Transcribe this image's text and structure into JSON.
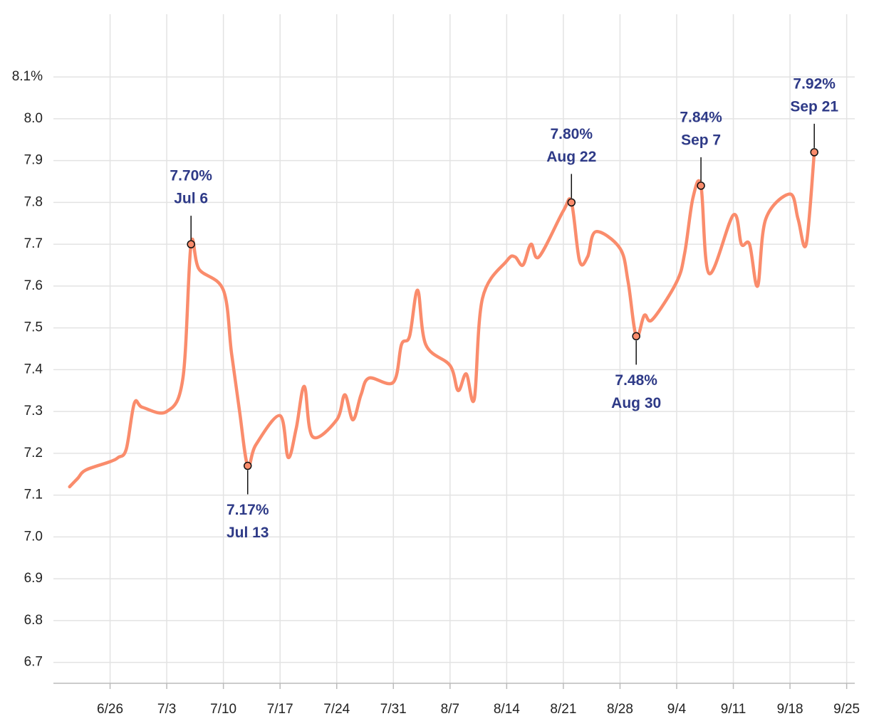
{
  "chart_data": {
    "type": "line",
    "x": [
      "6/21",
      "6/22",
      "6/23",
      "6/26",
      "6/27",
      "6/28",
      "6/29",
      "6/30",
      "7/3",
      "7/5",
      "7/6",
      "7/7",
      "7/10",
      "7/11",
      "7/12",
      "7/13",
      "7/14",
      "7/17",
      "7/18",
      "7/19",
      "7/20",
      "7/21",
      "7/24",
      "7/25",
      "7/26",
      "7/27",
      "7/28",
      "7/31",
      "8/1",
      "8/2",
      "8/3",
      "8/4",
      "8/7",
      "8/8",
      "8/9",
      "8/10",
      "8/11",
      "8/14",
      "8/15",
      "8/16",
      "8/17",
      "8/18",
      "8/21",
      "8/22",
      "8/23",
      "8/24",
      "8/25",
      "8/28",
      "8/29",
      "8/30",
      "8/31",
      "9/1",
      "9/4",
      "9/5",
      "9/6",
      "9/7",
      "9/8",
      "9/11",
      "9/12",
      "9/13",
      "9/14",
      "9/15",
      "9/18",
      "9/19",
      "9/20",
      "9/21"
    ],
    "series": [
      {
        "color": "#fa8c6c",
        "values": [
          7.12,
          7.14,
          7.16,
          7.18,
          7.19,
          7.21,
          7.32,
          7.31,
          7.3,
          7.38,
          7.7,
          7.64,
          7.59,
          7.44,
          7.3,
          7.17,
          7.22,
          7.29,
          7.19,
          7.26,
          7.36,
          7.24,
          7.28,
          7.34,
          7.28,
          7.34,
          7.38,
          7.37,
          7.46,
          7.48,
          7.59,
          7.46,
          7.41,
          7.35,
          7.39,
          7.33,
          7.57,
          7.66,
          7.67,
          7.65,
          7.7,
          7.67,
          7.78,
          7.8,
          7.66,
          7.67,
          7.73,
          7.69,
          7.61,
          7.48,
          7.53,
          7.52,
          7.61,
          7.68,
          7.81,
          7.84,
          7.63,
          7.77,
          7.7,
          7.7,
          7.6,
          7.76,
          7.82,
          7.76,
          7.7,
          7.92
        ]
      }
    ],
    "xlim": [
      "6/19",
      "9/26"
    ],
    "xticks": [
      "6/26",
      "7/3",
      "7/10",
      "7/17",
      "7/24",
      "7/31",
      "8/7",
      "8/14",
      "8/21",
      "8/28",
      "9/4",
      "9/11",
      "9/18",
      "9/25"
    ],
    "ylim": [
      6.65,
      8.25
    ],
    "yticks": [
      6.7,
      6.8,
      6.9,
      {
        "value": 7.0,
        "label": "7.0"
      },
      7.1,
      7.2,
      7.3,
      7.4,
      7.5,
      7.6,
      7.7,
      7.8,
      7.9,
      {
        "value": 8.0,
        "label": "8.0"
      },
      {
        "value": 8.1,
        "label": "8.1%"
      }
    ],
    "grid": true,
    "annotations": [
      {
        "x": "7/6",
        "label": "7.70%",
        "date": "Jul 6",
        "position": "above"
      },
      {
        "x": "7/13",
        "label": "7.17%",
        "date": "Jul 13",
        "position": "below"
      },
      {
        "x": "8/22",
        "label": "7.80%",
        "date": "Aug 22",
        "position": "above"
      },
      {
        "x": "8/30",
        "label": "7.48%",
        "date": "Aug 30",
        "position": "below"
      },
      {
        "x": "9/7",
        "label": "7.84%",
        "date": "Sep 7",
        "position": "above"
      },
      {
        "x": "9/21",
        "label": "7.92%",
        "date": "Sep 21",
        "position": "above"
      }
    ]
  }
}
